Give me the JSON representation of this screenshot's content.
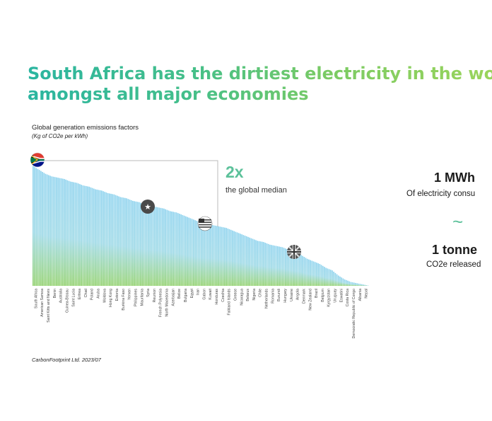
{
  "title": {
    "line1": "South Africa has the dirtiest electricity in the world,",
    "line2": "amongst all major economies"
  },
  "subtitle": "Global generation emissions factors",
  "unit": "(Kg of CO2e per kWh)",
  "callout": {
    "value": "2x",
    "label": "the global median"
  },
  "info": {
    "line1": "1 MWh",
    "line2": "Of electricity consu",
    "tilde": "~",
    "line3": "1 tonne",
    "line4": "CO2e released"
  },
  "source": "CarbonFootprint Ltd. 2023/07",
  "chart_data": {
    "type": "bar",
    "title": "Global generation emissions factors",
    "ylabel": "Kg of CO2e per kWh",
    "ylim": [
      0,
      1
    ],
    "categories": [
      "South Africa",
      "American Samoa",
      "Saint Kitts and Nevis",
      "Benin",
      "Australia",
      "Guinea-Bissau",
      "Saint Lucia",
      "Eritrea",
      "Chad",
      "Poland",
      "Aruba",
      "Moldova",
      "Hong Kong",
      "Estonia",
      "Burkina Faso",
      "Yemen",
      "Philippines",
      "Mauritania",
      "Syria",
      "Reunion",
      "French Polynesia",
      "North Macedonia",
      "Azerbaijan",
      "Belize",
      "Bulgaria",
      "Egypt",
      "Iran",
      "Gabon",
      "Kuwait",
      "Honduras",
      "Czechia",
      "Falkland Islands",
      "Greece",
      "Nicaragua",
      "Belarus",
      "Nigeria",
      "Chile",
      "Netherlands",
      "Romania",
      "Burundi",
      "Hungary",
      "Ukraine",
      "Angola",
      "Denmark",
      "New Zealand",
      "Brazil",
      "Belgium",
      "Kyrgyzstan",
      "Uruguay",
      "Eswatini",
      "Costa Rica",
      "Democratic Republic of Congo",
      "Albania",
      "Nepal"
    ],
    "values": [
      0.93,
      0.9,
      0.87,
      0.85,
      0.84,
      0.83,
      0.81,
      0.8,
      0.78,
      0.77,
      0.75,
      0.74,
      0.72,
      0.71,
      0.69,
      0.68,
      0.66,
      0.65,
      0.63,
      0.62,
      0.61,
      0.6,
      0.58,
      0.57,
      0.55,
      0.53,
      0.51,
      0.49,
      0.48,
      0.47,
      0.46,
      0.45,
      0.43,
      0.41,
      0.39,
      0.37,
      0.35,
      0.34,
      0.32,
      0.31,
      0.3,
      0.28,
      0.26,
      0.24,
      0.21,
      0.19,
      0.17,
      0.14,
      0.12,
      0.08,
      0.05,
      0.03,
      0.02,
      0.01
    ],
    "bars_per_label": 4,
    "median_reference": 0.46,
    "annotations": [
      {
        "category": "South Africa",
        "flag": "South Africa"
      },
      {
        "category": "Philippines",
        "flag": "China"
      },
      {
        "category": "Egypt",
        "flag": "United States"
      },
      {
        "category": "Romania",
        "flag": "United Kingdom"
      }
    ],
    "colors": {
      "top": "#8fd3ee",
      "bottom": "#8fd06a",
      "reference": "#bbbbbb",
      "label": "#444444"
    }
  }
}
